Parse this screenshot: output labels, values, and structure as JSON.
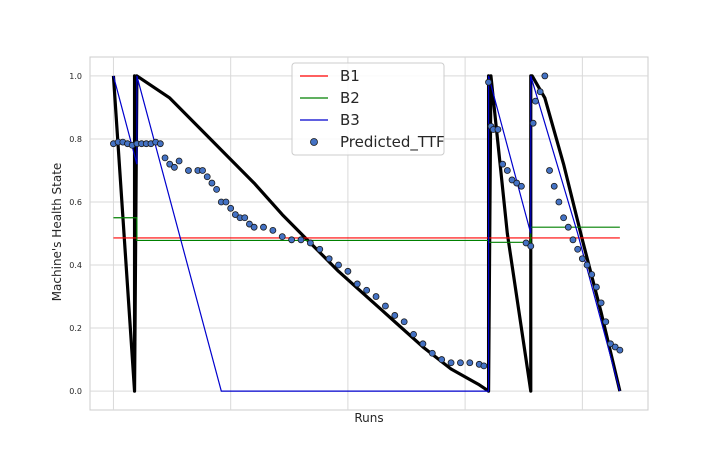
{
  "chart_data": {
    "type": "line",
    "title": "",
    "xlabel": "Runs",
    "ylabel": "Machine's Health State",
    "xlim": [
      -5,
      114
    ],
    "ylim": [
      -0.06,
      1.06
    ],
    "yticks": [
      0.0,
      0.2,
      0.4,
      0.6,
      0.8,
      1.0
    ],
    "ytick_labels": [
      "0.0",
      "0.2",
      "0.4",
      "0.6",
      "0.8",
      "1.0"
    ],
    "grid": true,
    "legend_position": "top-center",
    "series": [
      {
        "name": "B1",
        "color": "#ff0000",
        "x": [
          0,
          108
        ],
        "y": [
          0.486,
          0.486
        ]
      },
      {
        "name": "B2",
        "color": "#008000",
        "x": [
          0,
          5,
          5,
          80,
          80,
          89,
          89,
          108
        ],
        "y": [
          0.55,
          0.55,
          0.478,
          0.478,
          0.472,
          0.472,
          0.52,
          0.52
        ]
      },
      {
        "name": "B3",
        "color": "#0000cd",
        "x": [
          0,
          5,
          5,
          23,
          80,
          80,
          89,
          89,
          99,
          108
        ],
        "y": [
          1.0,
          0.72,
          1.0,
          0.0,
          0.0,
          1.0,
          0.5,
          1.0,
          0.5,
          0.0
        ]
      },
      {
        "name": "Predicted_TTF",
        "kind": "scatter",
        "color": "#4472c4",
        "x": [
          0,
          1,
          2,
          3,
          4,
          5,
          6,
          7,
          8,
          9,
          10,
          11,
          12,
          13,
          14,
          16,
          18,
          19,
          20,
          21,
          22,
          23,
          24,
          25,
          26,
          27,
          28,
          29,
          30,
          32,
          34,
          36,
          38,
          40,
          42,
          44,
          46,
          48,
          50,
          52,
          54,
          56,
          58,
          60,
          62,
          64,
          66,
          68,
          70,
          72,
          74,
          76,
          78,
          79,
          80,
          80.5,
          81,
          82,
          83,
          84,
          85,
          86,
          87,
          88,
          89,
          89.5,
          90,
          91,
          92,
          93,
          94,
          95,
          96,
          97,
          98,
          99,
          100,
          101,
          102,
          103,
          104,
          105,
          106,
          107,
          108
        ],
        "y": [
          0.785,
          0.79,
          0.79,
          0.785,
          0.78,
          0.785,
          0.785,
          0.785,
          0.785,
          0.79,
          0.785,
          0.74,
          0.72,
          0.71,
          0.73,
          0.7,
          0.7,
          0.7,
          0.68,
          0.66,
          0.64,
          0.6,
          0.6,
          0.58,
          0.56,
          0.55,
          0.55,
          0.53,
          0.52,
          0.52,
          0.51,
          0.49,
          0.48,
          0.48,
          0.47,
          0.45,
          0.42,
          0.4,
          0.38,
          0.34,
          0.32,
          0.3,
          0.27,
          0.24,
          0.22,
          0.18,
          0.15,
          0.12,
          0.1,
          0.09,
          0.09,
          0.09,
          0.085,
          0.08,
          0.98,
          0.84,
          0.83,
          0.83,
          0.72,
          0.7,
          0.67,
          0.66,
          0.65,
          0.47,
          0.46,
          0.85,
          0.92,
          0.95,
          1.0,
          0.7,
          0.65,
          0.6,
          0.55,
          0.52,
          0.48,
          0.45,
          0.42,
          0.4,
          0.37,
          0.33,
          0.28,
          0.22,
          0.15,
          0.14,
          0.13
        ]
      }
    ],
    "true_health_trace": {
      "color": "#000000",
      "x": [
        0,
        4.5,
        4.5,
        4.5,
        5,
        12,
        18,
        24,
        30,
        36,
        42,
        48,
        54,
        60,
        66,
        72,
        78,
        80,
        80,
        80,
        80.5,
        84,
        89,
        89,
        89.3,
        92,
        96,
        100,
        104,
        108
      ],
      "y": [
        1.0,
        0.0,
        1.0,
        0.0,
        1.0,
        0.93,
        0.84,
        0.75,
        0.66,
        0.56,
        0.47,
        0.38,
        0.3,
        0.22,
        0.14,
        0.07,
        0.02,
        0.0,
        1.0,
        0.0,
        1.0,
        0.5,
        0.0,
        1.0,
        1.0,
        0.93,
        0.72,
        0.48,
        0.25,
        0.0
      ]
    }
  }
}
